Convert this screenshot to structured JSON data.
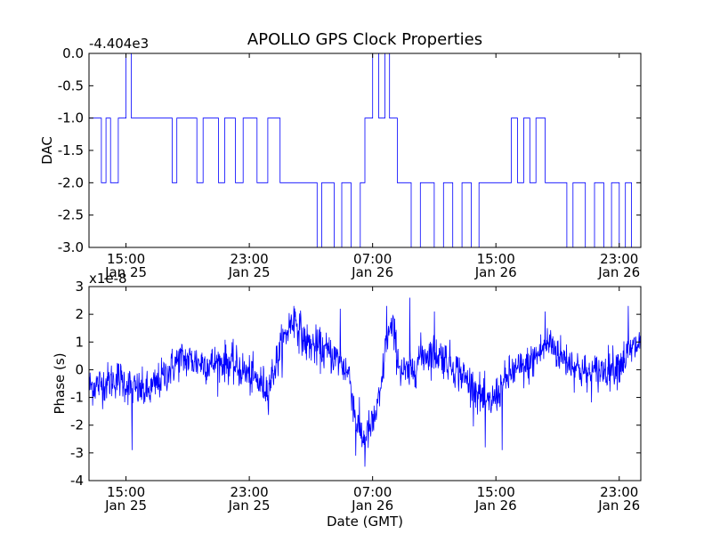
{
  "chart_data": [
    {
      "type": "line",
      "title": "APOLLO GPS Clock Properties",
      "ylabel": "DAC",
      "offset_label": "-4.404e3",
      "color": "#0000ff",
      "xlim": [
        12.6,
        48.4
      ],
      "ylim": [
        -3.0,
        0.0
      ],
      "yticks": [
        0.0,
        -0.5,
        -1.0,
        -1.5,
        -2.0,
        -2.5,
        -3.0
      ],
      "ytick_labels": [
        "0.0",
        "-0.5",
        "-1.0",
        "-1.5",
        "-2.0",
        "-2.5",
        "-3.0"
      ],
      "xticks": [
        15,
        23,
        31,
        39,
        47
      ],
      "xtick_labels": [
        [
          "15:00",
          "Jan 25"
        ],
        [
          "23:00",
          "Jan 25"
        ],
        [
          "07:00",
          "Jan 26"
        ],
        [
          "15:00",
          "Jan 26"
        ],
        [
          "23:00",
          "Jan 26"
        ]
      ],
      "levels": [
        [
          12.6,
          -1.0
        ],
        [
          13.4,
          -2.0
        ],
        [
          13.7,
          -1.0
        ],
        [
          14.0,
          -2.0
        ],
        [
          14.5,
          -1.0
        ],
        [
          15.0,
          0.0
        ],
        [
          15.35,
          -1.0
        ],
        [
          18.0,
          -2.0
        ],
        [
          18.3,
          -1.0
        ],
        [
          19.6,
          -2.0
        ],
        [
          20.0,
          -1.0
        ],
        [
          21.0,
          -2.0
        ],
        [
          21.4,
          -1.0
        ],
        [
          22.1,
          -2.0
        ],
        [
          22.6,
          -1.0
        ],
        [
          23.5,
          -2.0
        ],
        [
          24.2,
          -1.0
        ],
        [
          25.0,
          -2.0
        ],
        [
          27.4,
          -3.0
        ],
        [
          27.7,
          -2.0
        ],
        [
          28.5,
          -3.0
        ],
        [
          29.0,
          -2.0
        ],
        [
          29.6,
          -3.0
        ],
        [
          30.2,
          -2.0
        ],
        [
          30.5,
          -1.0
        ],
        [
          31.0,
          0.0
        ],
        [
          31.4,
          -1.0
        ],
        [
          31.8,
          0.0
        ],
        [
          32.1,
          -1.0
        ],
        [
          32.6,
          -2.0
        ],
        [
          33.5,
          -3.0
        ],
        [
          34.1,
          -2.0
        ],
        [
          35.0,
          -3.0
        ],
        [
          35.6,
          -2.0
        ],
        [
          36.2,
          -3.0
        ],
        [
          36.8,
          -2.0
        ],
        [
          37.4,
          -3.0
        ],
        [
          37.9,
          -2.0
        ],
        [
          40.0,
          -1.0
        ],
        [
          40.4,
          -2.0
        ],
        [
          40.8,
          -1.0
        ],
        [
          41.2,
          -2.0
        ],
        [
          41.6,
          -1.0
        ],
        [
          42.2,
          -2.0
        ],
        [
          43.6,
          -3.0
        ],
        [
          44.0,
          -2.0
        ],
        [
          44.8,
          -3.0
        ],
        [
          45.4,
          -2.0
        ],
        [
          46.0,
          -3.0
        ],
        [
          46.5,
          -2.0
        ],
        [
          47.0,
          -3.0
        ],
        [
          47.4,
          -2.0
        ],
        [
          47.8,
          -3.0
        ],
        [
          48.4,
          -3.0
        ]
      ]
    },
    {
      "type": "line",
      "ylabel": "Phase (s)",
      "xlabel": "Date (GMT)",
      "offset_label": "x1e-8",
      "color": "#0000ff",
      "xlim": [
        12.6,
        48.4
      ],
      "ylim": [
        -4,
        3
      ],
      "yticks": [
        3,
        2,
        1,
        0,
        -1,
        -2,
        -3,
        -4
      ],
      "ytick_labels": [
        "3",
        "2",
        "1",
        "0",
        "-1",
        "-2",
        "-3",
        "-4"
      ],
      "xticks": [
        15,
        23,
        31,
        39,
        47
      ],
      "xtick_labels": [
        [
          "15:00",
          "Jan 25"
        ],
        [
          "23:00",
          "Jan 25"
        ],
        [
          "07:00",
          "Jan 26"
        ],
        [
          "15:00",
          "Jan 26"
        ],
        [
          "23:00",
          "Jan 26"
        ]
      ],
      "trend": [
        [
          12.6,
          -0.6
        ],
        [
          13.5,
          -0.5
        ],
        [
          14.5,
          -0.3
        ],
        [
          15.5,
          -0.7
        ],
        [
          16.5,
          -0.8
        ],
        [
          17.5,
          -0.2
        ],
        [
          18.5,
          0.4
        ],
        [
          19.5,
          0.3
        ],
        [
          20.5,
          0.2
        ],
        [
          21.5,
          0.3
        ],
        [
          22.5,
          0.0
        ],
        [
          23.5,
          -0.4
        ],
        [
          24.2,
          -0.7
        ],
        [
          25.0,
          0.7
        ],
        [
          25.6,
          1.6
        ],
        [
          26.0,
          1.8
        ],
        [
          26.6,
          1.0
        ],
        [
          27.4,
          0.8
        ],
        [
          28.2,
          0.6
        ],
        [
          28.9,
          0.3
        ],
        [
          29.5,
          -0.2
        ],
        [
          29.9,
          -1.8
        ],
        [
          30.4,
          -2.5
        ],
        [
          31.0,
          -2.0
        ],
        [
          31.5,
          -1.0
        ],
        [
          31.9,
          1.2
        ],
        [
          32.3,
          1.5
        ],
        [
          32.8,
          0.0
        ],
        [
          33.4,
          -0.2
        ],
        [
          34.1,
          0.5
        ],
        [
          34.8,
          0.6
        ],
        [
          35.5,
          0.5
        ],
        [
          36.3,
          0.1
        ],
        [
          37.0,
          -0.3
        ],
        [
          37.8,
          -0.8
        ],
        [
          38.5,
          -1.3
        ],
        [
          39.2,
          -0.8
        ],
        [
          40.0,
          -0.1
        ],
        [
          41.0,
          0.1
        ],
        [
          41.8,
          0.6
        ],
        [
          42.5,
          1.0
        ],
        [
          43.2,
          0.5
        ],
        [
          44.0,
          0.2
        ],
        [
          45.0,
          -0.2
        ],
        [
          46.0,
          0.0
        ],
        [
          47.0,
          0.2
        ],
        [
          48.0,
          0.8
        ],
        [
          48.4,
          1.0
        ]
      ],
      "noise_sigma": 0.35,
      "spikes": [
        [
          15.4,
          -2.9
        ],
        [
          25.9,
          2.3
        ],
        [
          28.9,
          2.2
        ],
        [
          29.9,
          -3.1
        ],
        [
          30.5,
          -3.5
        ],
        [
          31.9,
          2.3
        ],
        [
          33.4,
          2.6
        ],
        [
          35.0,
          2.1
        ],
        [
          38.3,
          -2.8
        ],
        [
          39.4,
          -2.9
        ],
        [
          42.2,
          2.1
        ],
        [
          47.6,
          2.3
        ]
      ]
    }
  ]
}
